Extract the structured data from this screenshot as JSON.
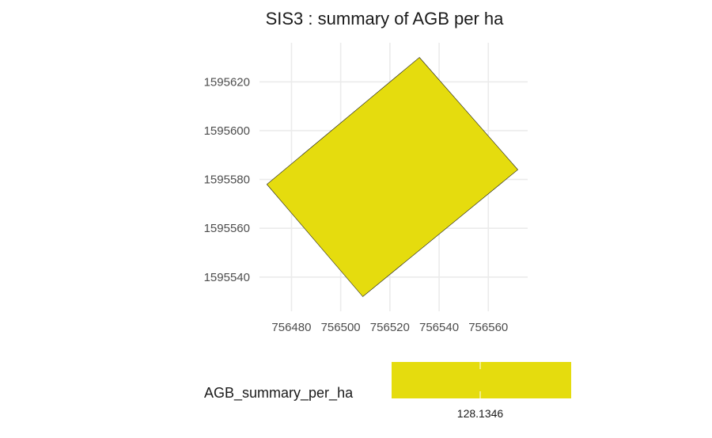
{
  "chart_data": {
    "type": "map",
    "title": "SIS3 : summary of AGB per ha",
    "xlabel": "",
    "ylabel": "",
    "xlim": [
      756467,
      756576
    ],
    "ylim": [
      1595526,
      1595636
    ],
    "x_ticks": [
      756480,
      756500,
      756520,
      756540,
      756560
    ],
    "y_ticks": [
      1595540,
      1595560,
      1595580,
      1595600,
      1595620
    ],
    "x_tick_labels": [
      "756480",
      "756500",
      "756520",
      "756540",
      "756560"
    ],
    "y_tick_labels": [
      "1595540",
      "1595560",
      "1595580",
      "1595600",
      "1595620"
    ],
    "grid": true,
    "polygon": {
      "vertices": [
        [
          756532,
          1595630
        ],
        [
          756572,
          1595584
        ],
        [
          756509,
          1595532
        ],
        [
          756470,
          1595578
        ]
      ],
      "fill": "#e5dc0e",
      "value": 128.1346
    },
    "legend": {
      "title": "AGB_summary_per_ha",
      "placement": "bottom",
      "value_label": "128.1346",
      "color": "#e5dc0e"
    }
  }
}
